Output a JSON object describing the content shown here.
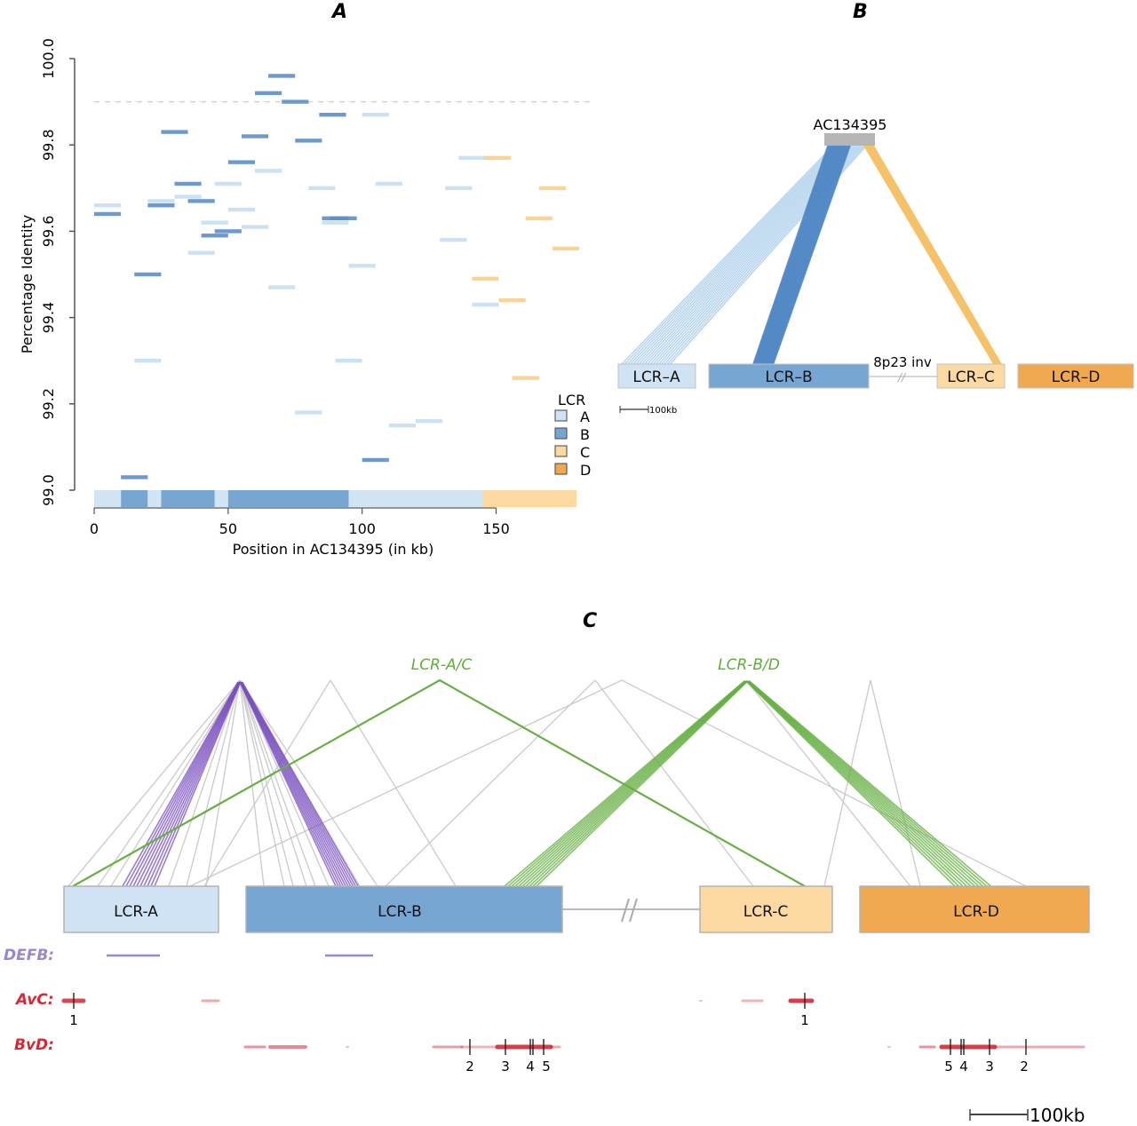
{
  "panels": {
    "a": {
      "letter": "A"
    },
    "b": {
      "letter": "B"
    },
    "c": {
      "letter": "C"
    }
  },
  "colors": {
    "lcr_a": "#cfe3f4",
    "lcr_b": "#78a6d2",
    "lcr_c": "#fbd9a0",
    "lcr_d": "#f0a951",
    "lcr_a_seg": "#c9dff2",
    "lcr_b_seg": "#5f92c9",
    "lcr_c_seg": "#f9cf86",
    "clone": "#b5b5b5",
    "grey_link": "#c8c8c8",
    "purple_link": "#7a4fbf",
    "green_link": "#66b043",
    "green_label": "#5fae3a",
    "defb": "#9c86cc",
    "red_track": "#d42a35",
    "axis": "#555555"
  },
  "chart_data": [
    {
      "type": "scatter",
      "title": "A",
      "xlabel": "Position in AC134395 (in kb)",
      "ylabel": "Percentage Identity",
      "xlim": [
        0,
        180
      ],
      "ylim": [
        99.0,
        100.0
      ],
      "xticks": [
        0,
        50,
        100,
        150
      ],
      "xtick_labels": [
        "0",
        "50",
        "100",
        "150"
      ],
      "yticks": [
        99.0,
        99.2,
        99.4,
        99.6,
        99.8,
        100.0
      ],
      "ytick_labels": [
        "99.0",
        "99.2",
        "99.4",
        "99.6",
        "99.8",
        "100.0"
      ],
      "threshold_line": 99.9,
      "segment_length_kb": 10,
      "legend": {
        "title": "LCR",
        "placement": "bottom-right",
        "entries": [
          "A",
          "B",
          "C",
          "D"
        ]
      },
      "series": [
        {
          "name": "A",
          "points": [
            [
              100,
              99.87
            ],
            [
              60,
              99.74
            ],
            [
              45,
              99.71
            ],
            [
              105,
              99.71
            ],
            [
              80,
              99.7
            ],
            [
              131,
              99.7
            ],
            [
              30,
              99.68
            ],
            [
              20,
              99.67
            ],
            [
              0,
              99.66
            ],
            [
              50,
              99.65
            ],
            [
              85,
              99.62
            ],
            [
              40,
              99.62
            ],
            [
              55,
              99.61
            ],
            [
              129,
              99.58
            ],
            [
              35,
              99.55
            ],
            [
              95,
              99.52
            ],
            [
              65,
              99.47
            ],
            [
              141,
              99.43
            ],
            [
              15,
              99.3
            ],
            [
              90,
              99.3
            ],
            [
              75,
              99.18
            ],
            [
              120,
              99.16
            ],
            [
              110,
              99.15
            ],
            [
              136,
              99.77
            ]
          ]
        },
        {
          "name": "B",
          "points": [
            [
              65,
              99.96
            ],
            [
              60,
              99.92
            ],
            [
              70,
              99.9
            ],
            [
              84,
              99.87
            ],
            [
              25,
              99.83
            ],
            [
              55,
              99.82
            ],
            [
              75,
              99.81
            ],
            [
              50,
              99.76
            ],
            [
              30,
              99.71
            ],
            [
              35,
              99.67
            ],
            [
              20,
              99.66
            ],
            [
              0,
              99.64
            ],
            [
              85,
              99.63
            ],
            [
              88,
              99.63
            ],
            [
              45,
              99.6
            ],
            [
              40,
              99.59
            ],
            [
              15,
              99.5
            ],
            [
              100,
              99.07
            ],
            [
              10,
              99.03
            ]
          ]
        },
        {
          "name": "C",
          "points": [
            [
              145.5,
              99.77
            ],
            [
              166,
              99.7
            ],
            [
              161,
              99.63
            ],
            [
              171,
              99.56
            ],
            [
              141,
              99.49
            ],
            [
              151,
              99.44
            ],
            [
              156,
              99.26
            ]
          ]
        },
        {
          "name": "D",
          "points": []
        }
      ],
      "position_track": [
        {
          "lcr": "A",
          "start": 0,
          "end": 10
        },
        {
          "lcr": "B",
          "start": 10,
          "end": 20
        },
        {
          "lcr": "A",
          "start": 20,
          "end": 25
        },
        {
          "lcr": "B",
          "start": 25,
          "end": 45
        },
        {
          "lcr": "A",
          "start": 45,
          "end": 50
        },
        {
          "lcr": "B",
          "start": 50,
          "end": 95
        },
        {
          "lcr": "A",
          "start": 95,
          "end": 145
        },
        {
          "lcr": "C",
          "start": 145,
          "end": 180
        }
      ]
    }
  ],
  "panel_b": {
    "clone_label": "AC134395",
    "inversion_label": "8p23 inv",
    "break_symbol": "//",
    "scale_label": "100kb",
    "boxes": [
      {
        "id": "a",
        "label": "LCR–A"
      },
      {
        "id": "b",
        "label": "LCR–B"
      },
      {
        "id": "c",
        "label": "LCR–C"
      },
      {
        "id": "d",
        "label": "LCR–D"
      }
    ]
  },
  "panel_c": {
    "label_ac": "LCR-A/C",
    "label_bd": "LCR-B/D",
    "break_symbol": "//",
    "boxes": [
      {
        "id": "a",
        "label": "LCR-A"
      },
      {
        "id": "b",
        "label": "LCR-B"
      },
      {
        "id": "c",
        "label": "LCR-C"
      },
      {
        "id": "d",
        "label": "LCR-D"
      }
    ],
    "tracks": {
      "defb_label": "DEFB:",
      "avc_label": "AvC:",
      "bvd_label": "BvD:"
    },
    "avc_markers": [
      {
        "label": "1",
        "side": "A"
      },
      {
        "label": "1",
        "side": "C"
      }
    ],
    "bvd_markers_b": [
      "2",
      "3",
      "4",
      "5"
    ],
    "bvd_markers_d": [
      "5",
      "4",
      "3",
      "2"
    ],
    "scale_label": "100kb"
  }
}
